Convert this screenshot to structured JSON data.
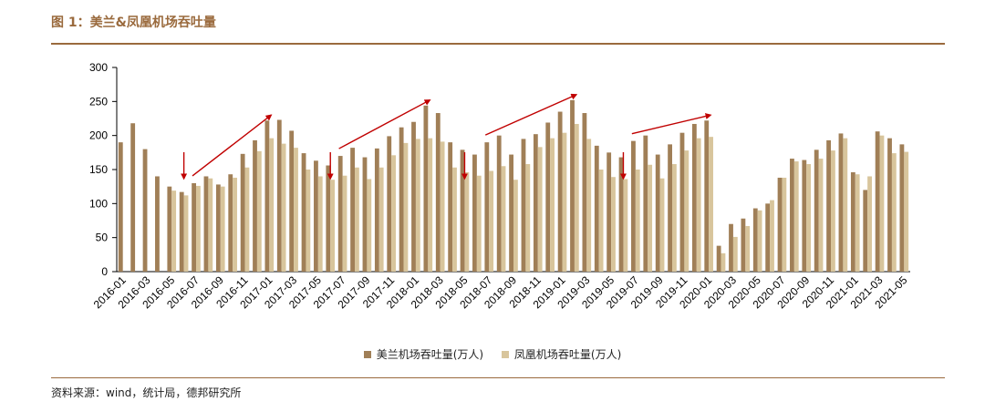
{
  "figure": {
    "title": "图 1：美兰&凤凰机场吞吐量",
    "source": "资料来源：wind，统计局，德邦研究所"
  },
  "colors": {
    "series1": "#a07f57",
    "series2": "#d8c59c",
    "arrow": "#c00000",
    "axis": "#000000"
  },
  "chart_data": {
    "type": "bar",
    "categories": [
      "2016-01",
      "2016-02",
      "2016-03",
      "2016-04",
      "2016-05",
      "2016-06",
      "2016-07",
      "2016-08",
      "2016-09",
      "2016-10",
      "2016-11",
      "2016-12",
      "2017-01",
      "2017-02",
      "2017-03",
      "2017-04",
      "2017-05",
      "2017-06",
      "2017-07",
      "2017-08",
      "2017-09",
      "2017-10",
      "2017-11",
      "2017-12",
      "2018-01",
      "2018-02",
      "2018-03",
      "2018-04",
      "2018-05",
      "2018-06",
      "2018-07",
      "2018-08",
      "2018-09",
      "2018-10",
      "2018-11",
      "2018-12",
      "2019-01",
      "2019-02",
      "2019-03",
      "2019-04",
      "2019-05",
      "2019-06",
      "2019-07",
      "2019-08",
      "2019-09",
      "2019-10",
      "2019-11",
      "2019-12",
      "2020-01",
      "2020-02",
      "2020-03",
      "2020-04",
      "2020-05",
      "2020-06",
      "2020-07",
      "2020-08",
      "2020-09",
      "2020-10",
      "2020-11",
      "2020-12",
      "2021-01",
      "2021-02",
      "2021-03",
      "2021-04",
      "2021-05"
    ],
    "tick_labels": [
      "2016-01",
      "2016-03",
      "2016-05",
      "2016-07",
      "2016-09",
      "2016-11",
      "2017-01",
      "2017-03",
      "2017-05",
      "2017-07",
      "2017-09",
      "2017-11",
      "2018-01",
      "2018-03",
      "2018-05",
      "2018-07",
      "2018-09",
      "2018-11",
      "2019-01",
      "2019-03",
      "2019-05",
      "2019-07",
      "2019-09",
      "2019-11",
      "2020-01",
      "2020-03",
      "2020-05",
      "2020-07",
      "2020-09",
      "2020-11",
      "2021-01",
      "2021-03",
      "2021-05"
    ],
    "series": [
      {
        "name": "美兰机场吞吐量(万人)",
        "values": [
          190,
          218,
          180,
          140,
          125,
          117,
          130,
          140,
          128,
          143,
          173,
          193,
          222,
          223,
          207,
          174,
          163,
          156,
          170,
          182,
          168,
          181,
          199,
          212,
          220,
          244,
          233,
          190,
          179,
          172,
          190,
          200,
          172,
          195,
          202,
          219,
          235,
          252,
          233,
          185,
          175,
          168,
          192,
          200,
          172,
          187,
          204,
          217,
          222,
          38,
          70,
          78,
          93,
          100,
          138,
          166,
          164,
          179,
          193,
          203,
          146,
          120,
          206,
          196,
          187
        ]
      },
      {
        "name": "凤凰机场吞吐量(万人)",
        "values": [
          0,
          0,
          0,
          0,
          119,
          112,
          126,
          137,
          125,
          138,
          153,
          177,
          196,
          188,
          182,
          150,
          140,
          135,
          141,
          153,
          136,
          153,
          171,
          189,
          195,
          196,
          191,
          153,
          146,
          141,
          148,
          155,
          135,
          158,
          183,
          196,
          204,
          217,
          195,
          150,
          139,
          136,
          150,
          157,
          137,
          158,
          178,
          196,
          198,
          27,
          51,
          67,
          90,
          105,
          138,
          162,
          158,
          166,
          178,
          196,
          143,
          140,
          200,
          174,
          176
        ]
      }
    ],
    "ylim": [
      0,
      300
    ],
    "yticks": [
      0,
      50,
      100,
      150,
      200,
      250,
      300
    ],
    "xlabel": "",
    "ylabel": "",
    "grid": false,
    "legend": "bottom",
    "annotations": [
      {
        "kind": "down-arrow",
        "at": "2016-06"
      },
      {
        "kind": "down-arrow",
        "at": "2017-06"
      },
      {
        "kind": "down-arrow",
        "at": "2018-05"
      },
      {
        "kind": "down-arrow",
        "at": "2019-06"
      },
      {
        "kind": "trend-arrow",
        "from": "2016-07",
        "to": "2017-01"
      },
      {
        "kind": "trend-arrow",
        "from": "2017-07",
        "to": "2018-02"
      },
      {
        "kind": "trend-arrow",
        "from": "2018-07",
        "to": "2019-02"
      },
      {
        "kind": "trend-arrow",
        "from": "2019-07",
        "to": "2020-01"
      }
    ]
  }
}
